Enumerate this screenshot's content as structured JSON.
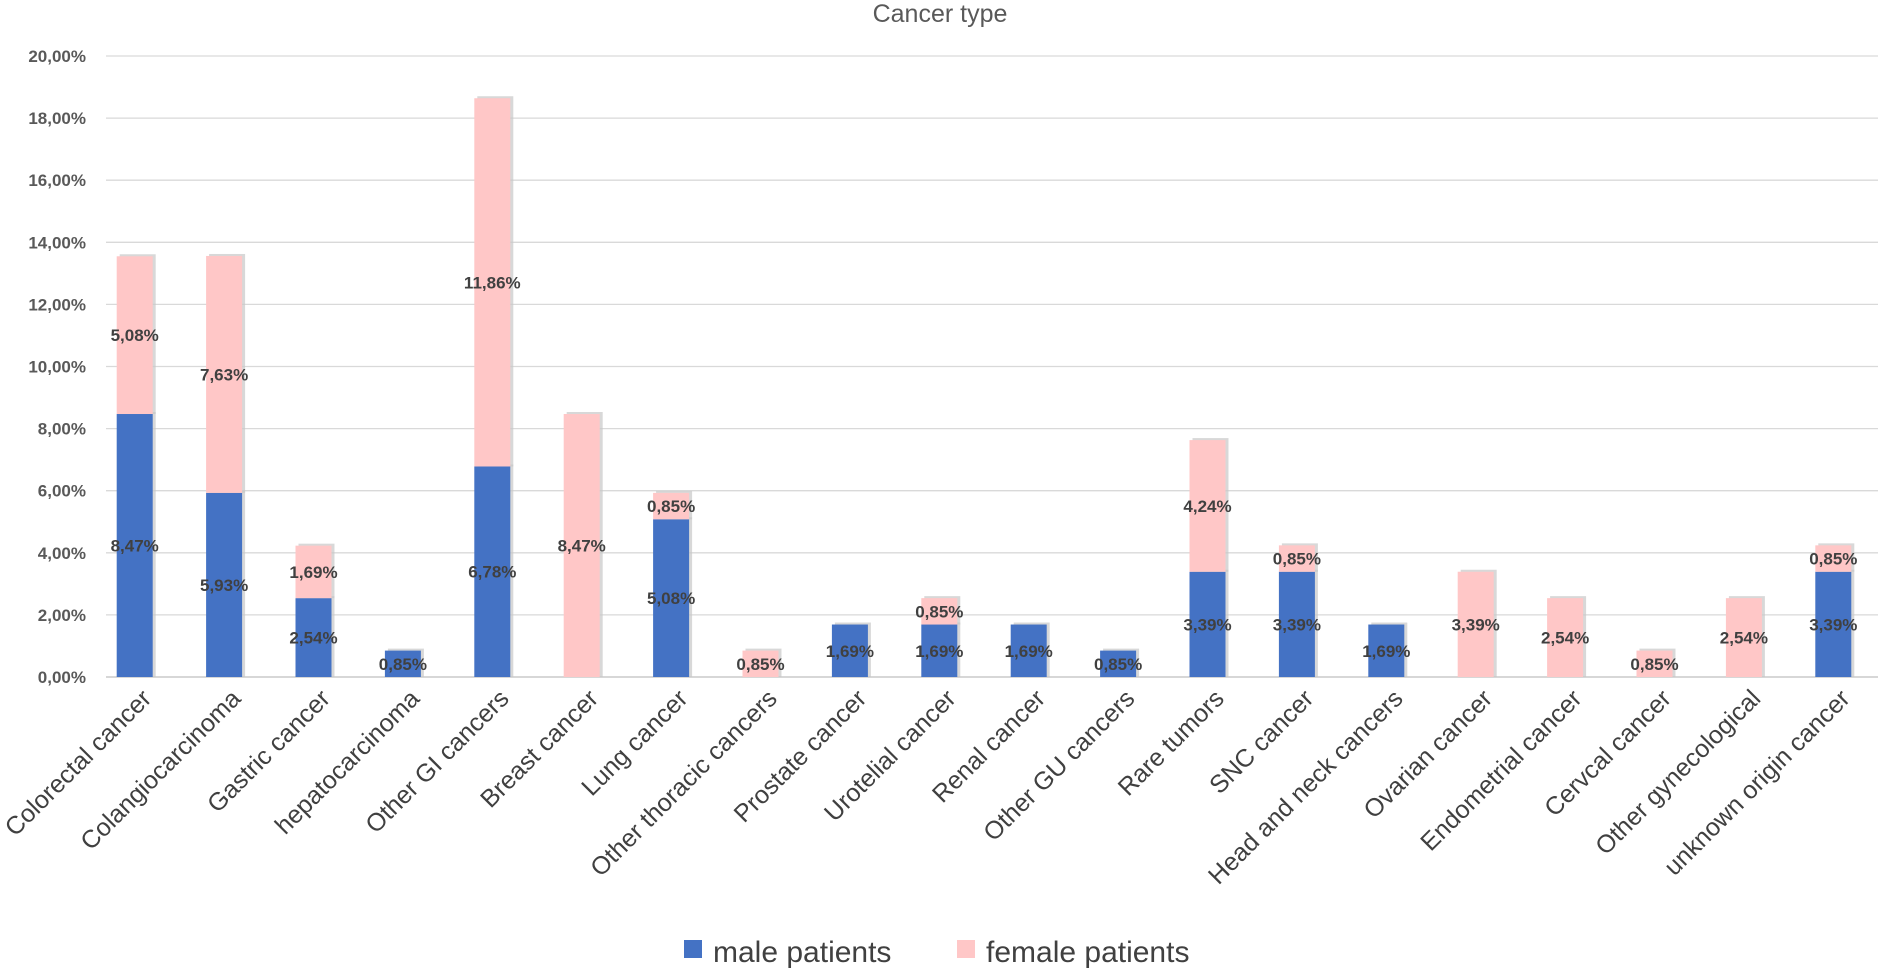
{
  "chart_data": {
    "type": "bar",
    "stacked": true,
    "title": "Cancer type",
    "xlabel": "",
    "ylabel": "",
    "ylim": [
      0,
      20
    ],
    "y_ticks": [
      "0,00%",
      "2,00%",
      "4,00%",
      "6,00%",
      "8,00%",
      "10,00%",
      "12,00%",
      "14,00%",
      "16,00%",
      "18,00%",
      "20,00%"
    ],
    "grid": true,
    "legend_position": "bottom",
    "categories": [
      "Colorectal cancer",
      "Colangiocarcinoma",
      "Gastric cancer",
      "hepatocarcinoma",
      "Other GI cancers",
      "Breast cancer",
      "Lung cancer",
      "Other thoracic cancers",
      "Prostate cancer",
      "Urotelial cancer",
      "Renal cancer",
      "Other GU cancers",
      "Rare tumors",
      "SNC cancer",
      "Head and neck cancers",
      "Ovarian cancer",
      "Endometrial cancer",
      "Cervcal cancer",
      "Other gynecological",
      "unknown origin cancer"
    ],
    "series": [
      {
        "name": "male patients",
        "color": "#4472C4",
        "values": [
          8.47,
          5.93,
          2.54,
          0.85,
          6.78,
          0,
          5.08,
          0,
          1.69,
          1.69,
          1.69,
          0.85,
          3.39,
          3.39,
          1.69,
          0,
          0,
          0,
          0,
          3.39
        ],
        "labels": [
          "8,47%",
          "5,93%",
          "2,54%",
          "0,85%",
          "6,78%",
          "",
          "5,08%",
          "",
          "1,69%",
          "1,69%",
          "1,69%",
          "0,85%",
          "3,39%",
          "3,39%",
          "1,69%",
          "",
          "",
          "",
          "",
          "3,39%"
        ]
      },
      {
        "name": "female patients",
        "color": "#FFC7C7",
        "values": [
          5.08,
          7.63,
          1.69,
          0,
          11.86,
          8.47,
          0.85,
          0.85,
          0,
          0.85,
          0,
          0,
          4.24,
          0.85,
          0,
          3.39,
          2.54,
          0.85,
          2.54,
          0.85
        ],
        "labels": [
          "5,08%",
          "7,63%",
          "1,69%",
          "",
          "11,86%",
          "8,47%",
          "0,85%",
          "0,85%",
          "",
          "0,85%",
          "",
          "",
          "4,24%",
          "0,85%",
          "",
          "3,39%",
          "2,54%",
          "0,85%",
          "2,54%",
          "0,85%"
        ]
      }
    ]
  }
}
